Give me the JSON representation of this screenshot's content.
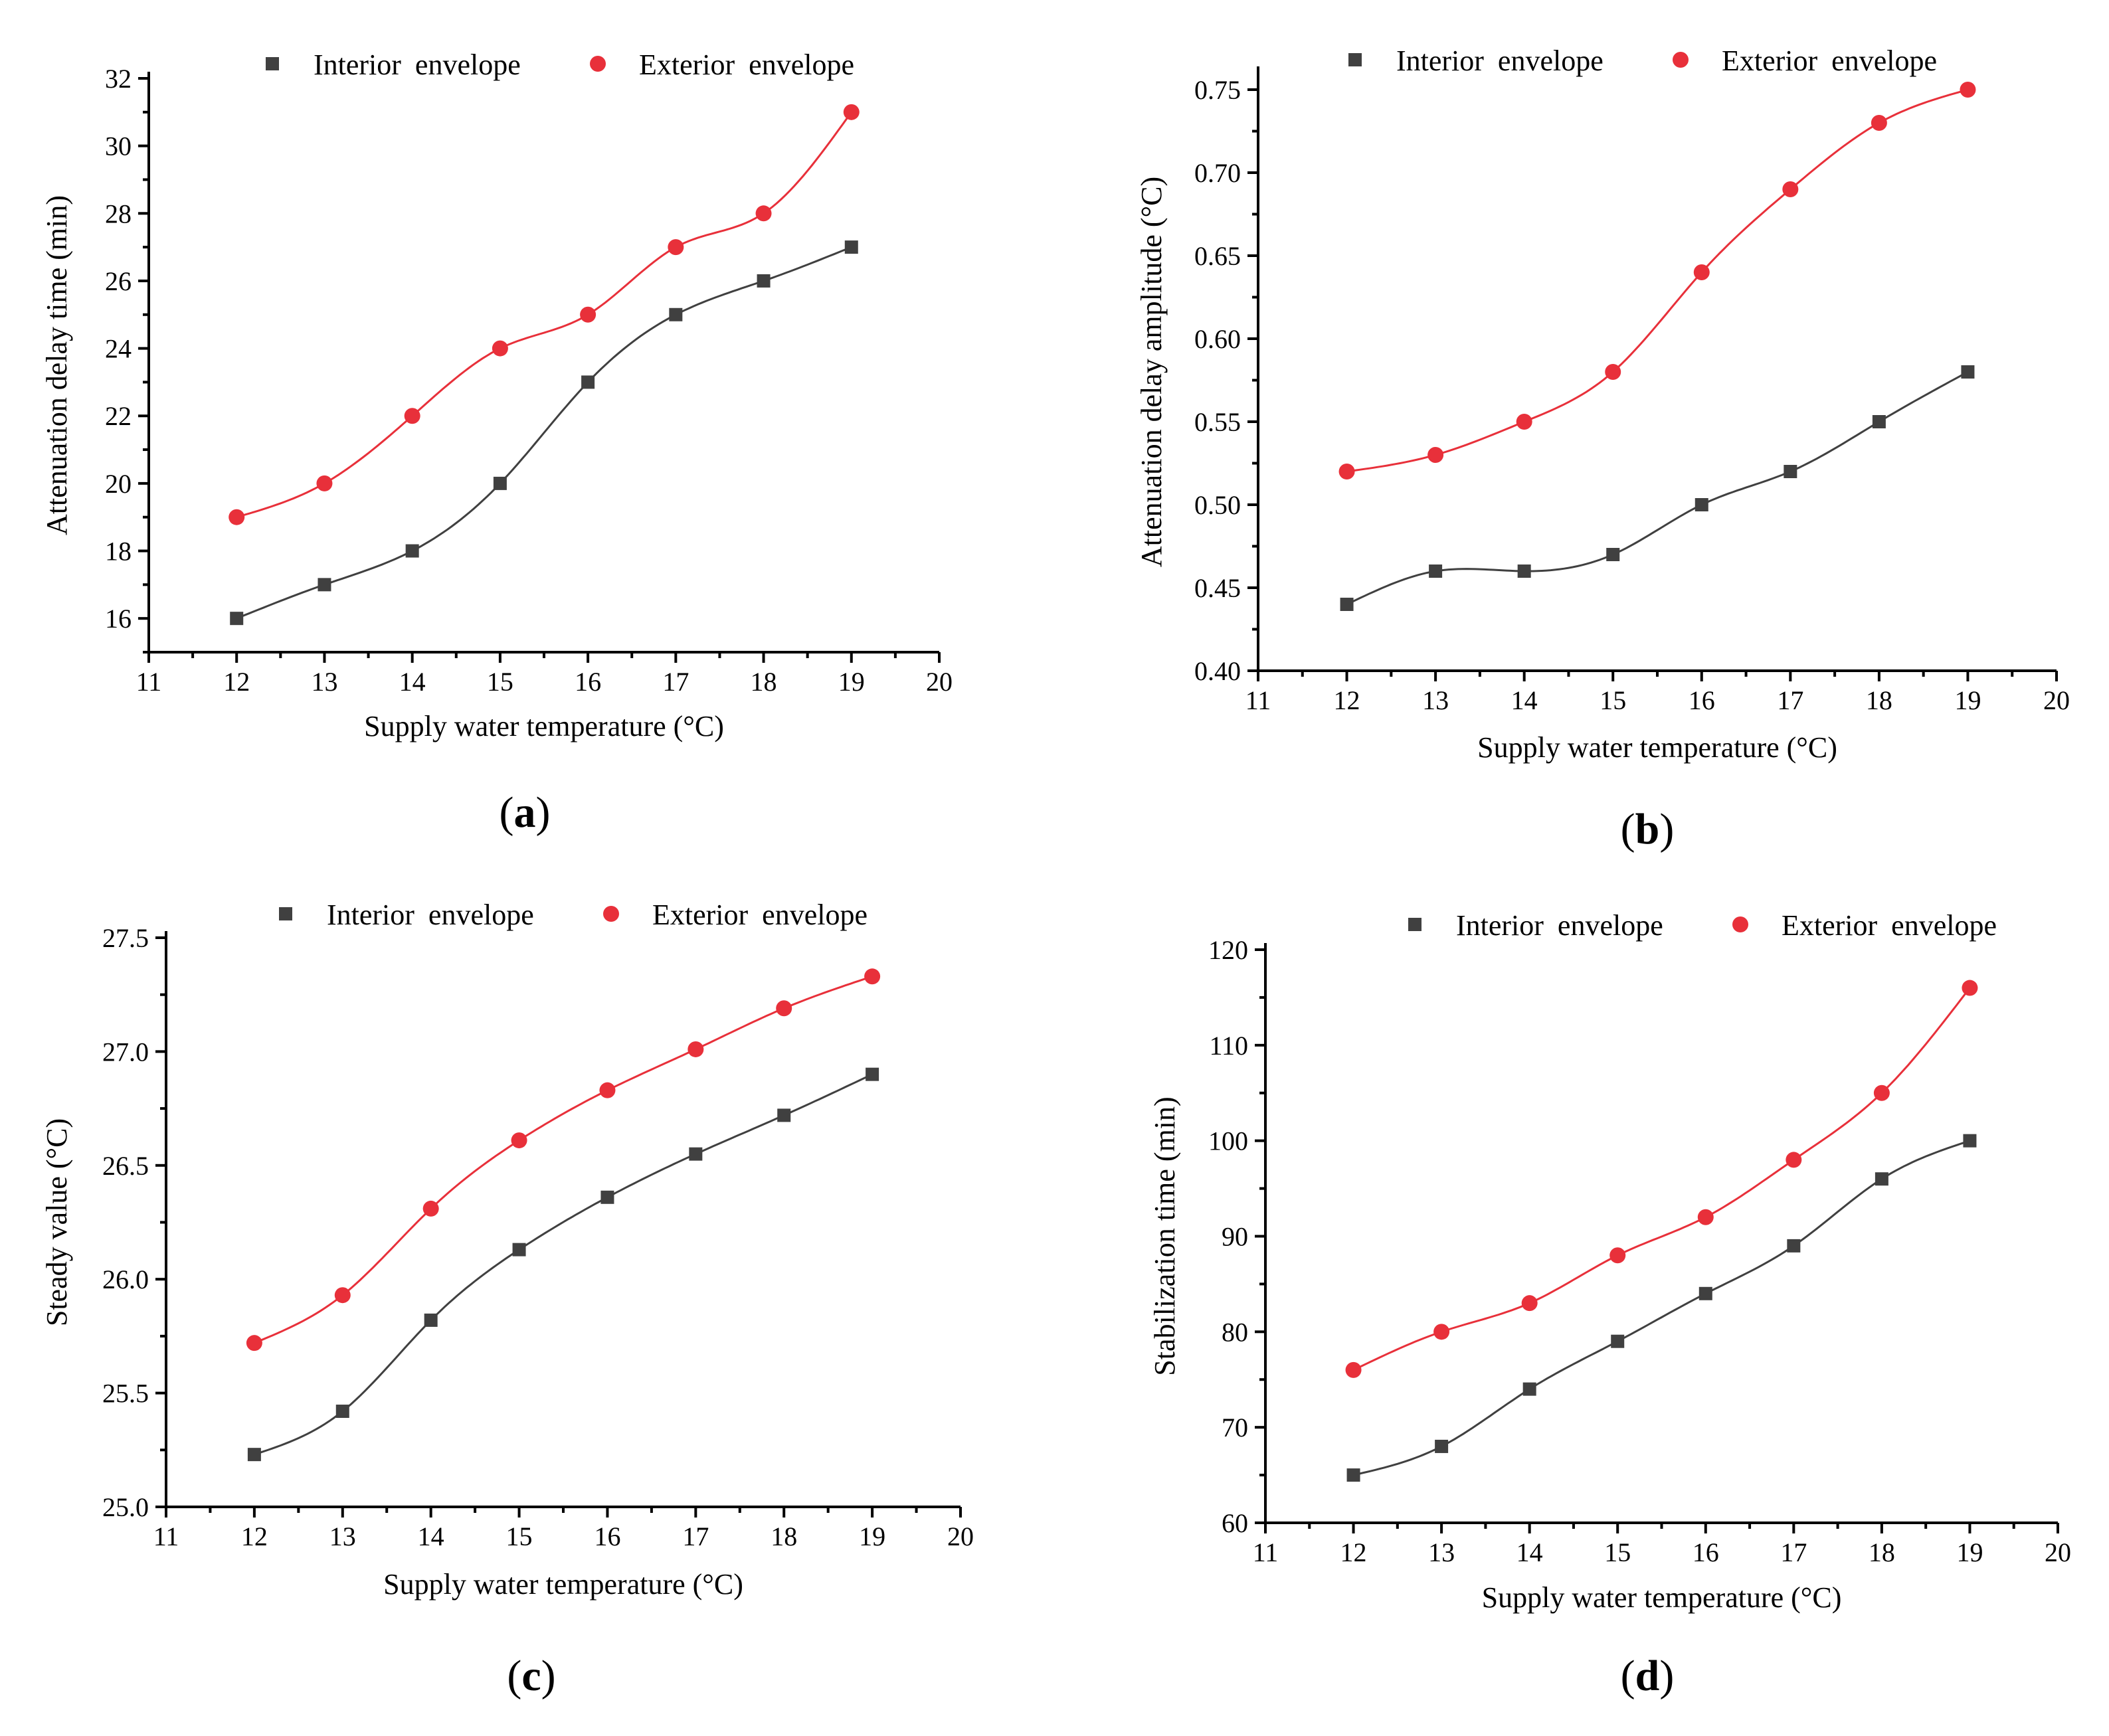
{
  "figure": {
    "colors": {
      "interior": "#404040",
      "exterior": "#e8303a",
      "axis": "#000000"
    }
  },
  "chart_data": [
    {
      "panel": "a",
      "type": "scatter",
      "xlabel": "Supply water temperature (°C)",
      "ylabel": "Attenuation delay time (min)",
      "xlim": [
        11,
        20
      ],
      "ylim": [
        15,
        32
      ],
      "xticks": [
        11,
        12,
        13,
        14,
        15,
        16,
        17,
        18,
        19,
        20
      ],
      "xtick_labels": [
        "11",
        "12",
        "13",
        "14",
        "15",
        "16",
        "17",
        "18",
        "19",
        "20"
      ],
      "yticks": [
        16,
        18,
        20,
        22,
        24,
        26,
        28,
        30,
        32
      ],
      "ytick_labels": [
        "16",
        "18",
        "20",
        "22",
        "24",
        "26",
        "28",
        "30",
        "32"
      ],
      "x": [
        12,
        13,
        14,
        15,
        16,
        17,
        18,
        19
      ],
      "series": [
        {
          "name": "Interior envelope",
          "marker": "square",
          "values": [
            16,
            17,
            18,
            20,
            23,
            25,
            26,
            27
          ]
        },
        {
          "name": "Exterior envelope",
          "marker": "circle",
          "values": [
            19,
            20,
            22,
            24,
            25,
            27,
            28,
            31
          ]
        }
      ],
      "legend": "top-center"
    },
    {
      "panel": "b",
      "type": "scatter",
      "xlabel": "Supply water temperature (°C)",
      "ylabel": "Attenuation delay amplitude (°C)",
      "xlim": [
        11,
        20
      ],
      "ylim": [
        0.4,
        0.76
      ],
      "xticks": [
        11,
        12,
        13,
        14,
        15,
        16,
        17,
        18,
        19,
        20
      ],
      "xtick_labels": [
        "11",
        "12",
        "13",
        "14",
        "15",
        "16",
        "17",
        "18",
        "19",
        "20"
      ],
      "yticks": [
        0.4,
        0.45,
        0.5,
        0.55,
        0.6,
        0.65,
        0.7,
        0.75
      ],
      "ytick_labels": [
        "0.40",
        "0.45",
        "0.50",
        "0.55",
        "0.60",
        "0.65",
        "0.70",
        "0.75"
      ],
      "x": [
        12,
        13,
        14,
        15,
        16,
        17,
        18,
        19
      ],
      "series": [
        {
          "name": "Interior envelope",
          "marker": "square",
          "values": [
            0.44,
            0.46,
            0.46,
            0.47,
            0.5,
            0.52,
            0.55,
            0.58
          ]
        },
        {
          "name": "Exterior envelope",
          "marker": "circle",
          "values": [
            0.52,
            0.53,
            0.55,
            0.58,
            0.64,
            0.69,
            0.73,
            0.75
          ]
        }
      ],
      "legend": "top-center"
    },
    {
      "panel": "c",
      "type": "scatter",
      "xlabel": "Supply water temperature (°C)",
      "ylabel": "Steady value (°C)",
      "xlim": [
        11,
        20
      ],
      "ylim": [
        25.0,
        27.5
      ],
      "xticks": [
        11,
        12,
        13,
        14,
        15,
        16,
        17,
        18,
        19,
        20
      ],
      "xtick_labels": [
        "11",
        "12",
        "13",
        "14",
        "15",
        "16",
        "17",
        "18",
        "19",
        "20"
      ],
      "yticks": [
        25.0,
        25.5,
        26.0,
        26.5,
        27.0,
        27.5
      ],
      "ytick_labels": [
        "25.0",
        "25.5",
        "26.0",
        "26.5",
        "27.0",
        "27.5"
      ],
      "x": [
        12,
        13,
        14,
        15,
        16,
        17,
        18,
        19
      ],
      "series": [
        {
          "name": "Interior envelope",
          "marker": "square",
          "values": [
            25.23,
            25.42,
            25.82,
            26.13,
            26.36,
            26.55,
            26.72,
            26.9
          ]
        },
        {
          "name": "Exterior envelope",
          "marker": "circle",
          "values": [
            25.72,
            25.93,
            26.31,
            26.61,
            26.83,
            27.01,
            27.19,
            27.33
          ]
        }
      ],
      "legend": "top-center"
    },
    {
      "panel": "d",
      "type": "scatter",
      "xlabel": "Supply water temperature (°C)",
      "ylabel": "Stabilization time (min)",
      "xlim": [
        11,
        20
      ],
      "ylim": [
        60,
        120
      ],
      "xticks": [
        11,
        12,
        13,
        14,
        15,
        16,
        17,
        18,
        19,
        20
      ],
      "xtick_labels": [
        "11",
        "12",
        "13",
        "14",
        "15",
        "16",
        "17",
        "18",
        "19",
        "20"
      ],
      "yticks": [
        60,
        70,
        80,
        90,
        100,
        110,
        120
      ],
      "ytick_labels": [
        "60",
        "70",
        "80",
        "90",
        "100",
        "110",
        "120"
      ],
      "x": [
        12,
        13,
        14,
        15,
        16,
        17,
        18,
        19
      ],
      "series": [
        {
          "name": "Interior envelope",
          "marker": "square",
          "values": [
            65,
            68,
            74,
            79,
            84,
            89,
            96,
            100
          ]
        },
        {
          "name": "Exterior envelope",
          "marker": "circle",
          "values": [
            76,
            80,
            83,
            88,
            92,
            98,
            105,
            116
          ]
        }
      ],
      "legend": "top-center"
    }
  ]
}
